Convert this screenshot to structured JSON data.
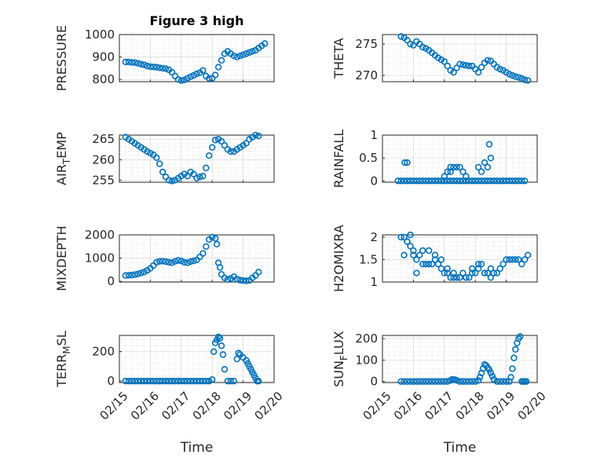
{
  "figure": {
    "marker_color": "#0072bd"
  },
  "chart_data": [
    {
      "type": "scatter",
      "title": "Figure 3 high",
      "ylabel": "PRESSURE",
      "ylim": [
        790,
        1000
      ],
      "yticks": [
        800,
        900,
        1000
      ],
      "show_x_ticklabels": false,
      "xlim": [
        "02/15",
        "02/20"
      ],
      "xticks": [
        "02/15",
        "02/16",
        "02/17",
        "02/18",
        "02/19",
        "02/20"
      ],
      "grid": true,
      "x": [
        0.2,
        0.3,
        0.4,
        0.5,
        0.6,
        0.7,
        0.8,
        0.9,
        1.0,
        1.1,
        1.2,
        1.3,
        1.4,
        1.5,
        1.6,
        1.7,
        1.8,
        1.9,
        2.0,
        2.1,
        2.2,
        2.3,
        2.4,
        2.5,
        2.6,
        2.7,
        2.8,
        2.9,
        3.0,
        3.1,
        3.2,
        3.3,
        3.4,
        3.5,
        3.6,
        3.7,
        3.8,
        3.9,
        4.0,
        4.1,
        4.2,
        4.3,
        4.4,
        4.5,
        4.6,
        4.7
      ],
      "y": [
        878,
        878,
        876,
        875,
        872,
        868,
        865,
        860,
        857,
        856,
        855,
        852,
        850,
        848,
        843,
        832,
        815,
        800,
        795,
        798,
        805,
        812,
        818,
        825,
        830,
        840,
        815,
        805,
        805,
        820,
        855,
        885,
        915,
        925,
        915,
        905,
        900,
        905,
        910,
        915,
        920,
        925,
        930,
        940,
        950,
        960
      ]
    },
    {
      "type": "scatter",
      "title": "",
      "ylabel": "THETA",
      "ylim": [
        269,
        276.5
      ],
      "yticks": [
        270,
        275
      ],
      "show_x_ticklabels": false,
      "xlim": [
        "02/15",
        "02/20"
      ],
      "xticks": [
        "02/15",
        "02/16",
        "02/17",
        "02/18",
        "02/19",
        "02/20"
      ],
      "grid": true,
      "x": [
        0.6,
        0.7,
        0.8,
        0.9,
        1.0,
        1.1,
        1.2,
        1.3,
        1.4,
        1.5,
        1.6,
        1.7,
        1.8,
        1.9,
        2.0,
        2.1,
        2.2,
        2.3,
        2.4,
        2.5,
        2.6,
        2.7,
        2.8,
        2.9,
        3.0,
        3.1,
        3.2,
        3.3,
        3.4,
        3.5,
        3.6,
        3.7,
        3.8,
        3.9,
        4.0,
        4.1,
        4.2,
        4.3,
        4.4,
        4.5,
        4.6,
        4.7
      ],
      "y": [
        276.2,
        276.0,
        275.6,
        275.0,
        274.8,
        275.4,
        275.0,
        274.5,
        274.3,
        274.0,
        273.6,
        273.2,
        272.8,
        272.5,
        272.2,
        271.5,
        270.8,
        270.5,
        271.2,
        271.8,
        271.7,
        271.6,
        271.5,
        271.5,
        271.0,
        270.5,
        271.3,
        272.0,
        272.4,
        272.3,
        271.8,
        271.3,
        271.0,
        270.8,
        270.5,
        270.2,
        270.0,
        269.8,
        269.7,
        269.5,
        269.3,
        269.2
      ]
    },
    {
      "type": "scatter",
      "title": "",
      "ylabel": "AIR_TEMP",
      "ylim": [
        254.5,
        266
      ],
      "yticks": [
        255,
        260,
        265
      ],
      "show_x_ticklabels": false,
      "xlim": [
        "02/15",
        "02/20"
      ],
      "xticks": [
        "02/15",
        "02/16",
        "02/17",
        "02/18",
        "02/19",
        "02/20"
      ],
      "grid": true,
      "x": [
        0.2,
        0.3,
        0.4,
        0.5,
        0.6,
        0.7,
        0.8,
        0.9,
        1.0,
        1.1,
        1.2,
        1.3,
        1.4,
        1.5,
        1.6,
        1.7,
        1.8,
        1.9,
        2.0,
        2.1,
        2.2,
        2.3,
        2.4,
        2.5,
        2.6,
        2.7,
        2.8,
        2.9,
        3.0,
        3.1,
        3.2,
        3.3,
        3.4,
        3.5,
        3.6,
        3.7,
        3.8,
        3.9,
        4.0,
        4.1,
        4.2,
        4.3,
        4.4,
        4.5
      ],
      "y": [
        265.5,
        265.0,
        264.5,
        264.0,
        263.5,
        263.0,
        262.5,
        262.0,
        261.6,
        261.2,
        260.5,
        259.0,
        257.0,
        255.8,
        255.0,
        254.8,
        255.0,
        255.5,
        256.0,
        256.5,
        256.0,
        257.0,
        256.5,
        255.5,
        255.8,
        256.0,
        258.0,
        261.0,
        263.0,
        264.8,
        265.0,
        264.5,
        263.5,
        262.5,
        262.0,
        262.0,
        262.5,
        263.0,
        263.5,
        264.0,
        265.0,
        265.5,
        266.0,
        265.8
      ]
    },
    {
      "type": "scatter",
      "title": "",
      "ylabel": "RAINFALL",
      "ylim": [
        -0.03,
        1
      ],
      "yticks": [
        0,
        0.5,
        1
      ],
      "show_x_ticklabels": false,
      "xlim": [
        "02/15",
        "02/20"
      ],
      "xticks": [
        "02/15",
        "02/16",
        "02/17",
        "02/18",
        "02/19",
        "02/20"
      ],
      "grid": true,
      "x": [
        0.5,
        0.6,
        0.7,
        0.8,
        0.9,
        1.0,
        1.1,
        1.2,
        1.3,
        1.4,
        1.5,
        1.6,
        1.7,
        1.8,
        1.9,
        2.0,
        2.1,
        2.2,
        2.3,
        2.4,
        2.5,
        2.6,
        2.7,
        2.8,
        2.9,
        3.0,
        3.1,
        3.2,
        3.3,
        3.4,
        3.5,
        3.6,
        3.7,
        3.8,
        3.9,
        4.0,
        4.1,
        4.2,
        4.3,
        4.4,
        4.5,
        4.6,
        0.72,
        0.8,
        2.0,
        2.1,
        2.2,
        2.3,
        2.4,
        2.5,
        2.6,
        2.7,
        3.1,
        3.2,
        3.3,
        3.4,
        3.5,
        2.2,
        3.45
      ],
      "y": [
        0,
        0,
        0,
        0,
        0,
        0,
        0,
        0,
        0,
        0,
        0,
        0,
        0,
        0,
        0,
        0,
        0,
        0,
        0,
        0,
        0,
        0,
        0,
        0,
        0,
        0,
        0,
        0,
        0,
        0,
        0,
        0,
        0,
        0,
        0,
        0,
        0,
        0,
        0,
        0,
        0,
        0,
        0.4,
        0.4,
        0.1,
        0.2,
        0.3,
        0.3,
        0.3,
        0.3,
        0.2,
        0.1,
        0.3,
        0.2,
        0.4,
        0.3,
        0.5,
        0.2,
        0.8
      ]
    },
    {
      "type": "scatter",
      "title": "",
      "ylabel": "MIXDEPTH",
      "ylim": [
        -30,
        2000
      ],
      "yticks": [
        0,
        1000,
        2000
      ],
      "show_x_ticklabels": false,
      "xlim": [
        "02/15",
        "02/20"
      ],
      "xticks": [
        "02/15",
        "02/16",
        "02/17",
        "02/18",
        "02/19",
        "02/20"
      ],
      "grid": true,
      "x": [
        0.2,
        0.3,
        0.4,
        0.5,
        0.6,
        0.7,
        0.8,
        0.9,
        1.0,
        1.1,
        1.2,
        1.3,
        1.4,
        1.5,
        1.6,
        1.7,
        1.8,
        1.9,
        2.0,
        2.1,
        2.2,
        2.3,
        2.4,
        2.5,
        2.6,
        2.7,
        2.8,
        2.9,
        3.0,
        3.1,
        3.15,
        3.2,
        3.25,
        3.3,
        3.4,
        3.5,
        3.6,
        3.7,
        3.8,
        3.9,
        4.0,
        4.1,
        4.2,
        4.3,
        4.4,
        4.5
      ],
      "y": [
        250,
        260,
        270,
        290,
        320,
        360,
        400,
        470,
        560,
        680,
        820,
        860,
        870,
        850,
        820,
        800,
        860,
        900,
        880,
        820,
        800,
        850,
        880,
        920,
        1050,
        1200,
        1500,
        1800,
        1900,
        1850,
        1600,
        800,
        600,
        300,
        150,
        80,
        120,
        200,
        100,
        50,
        30,
        20,
        40,
        150,
        250,
        400
      ]
    },
    {
      "type": "scatter",
      "title": "",
      "ylabel": "H2OMIXRA",
      "ylim": [
        1,
        2.05
      ],
      "yticks": [
        1,
        1.5,
        2
      ],
      "show_x_ticklabels": false,
      "xlim": [
        "02/15",
        "02/20"
      ],
      "xticks": [
        "02/15",
        "02/16",
        "02/17",
        "02/18",
        "02/19",
        "02/20"
      ],
      "grid": true,
      "x": [
        0.6,
        0.7,
        0.8,
        0.9,
        1.0,
        1.1,
        1.2,
        1.3,
        1.4,
        1.5,
        1.6,
        1.7,
        1.8,
        1.9,
        2.0,
        2.1,
        2.2,
        2.3,
        2.4,
        2.5,
        2.6,
        2.7,
        2.8,
        2.9,
        3.0,
        3.1,
        3.2,
        3.3,
        3.4,
        3.5,
        3.6,
        3.7,
        3.8,
        3.9,
        4.0,
        4.1,
        4.2,
        4.3,
        4.4,
        4.5,
        4.6,
        4.7,
        0.7,
        0.8,
        0.9,
        1.0,
        1.1,
        1.3,
        1.5,
        1.7,
        1.9,
        2.1,
        2.3,
        2.5,
        2.7,
        2.9,
        3.1,
        3.3,
        3.5
      ],
      "y": [
        2.0,
        2.0,
        1.9,
        1.8,
        1.6,
        1.5,
        1.6,
        1.4,
        1.4,
        1.4,
        1.4,
        1.5,
        1.4,
        1.3,
        1.2,
        1.2,
        1.1,
        1.1,
        1.1,
        1.1,
        1.2,
        1.1,
        1.1,
        1.2,
        1.2,
        1.3,
        1.4,
        1.2,
        1.2,
        1.1,
        1.2,
        1.2,
        1.3,
        1.4,
        1.5,
        1.5,
        1.5,
        1.5,
        1.5,
        1.4,
        1.5,
        1.6,
        1.6,
        1.9,
        2.05,
        1.7,
        1.2,
        1.7,
        1.7,
        1.6,
        1.5,
        1.3,
        1.2,
        1.1,
        1.1,
        1.3,
        1.4,
        1.2,
        1.3
      ]
    },
    {
      "type": "scatter",
      "title": "",
      "ylabel": "TERR_MSL",
      "ylim": [
        -10,
        310
      ],
      "yticks": [
        0,
        200
      ],
      "show_x_ticklabels": true,
      "xlim": [
        "02/15",
        "02/20"
      ],
      "xticks": [
        "02/15",
        "02/16",
        "02/17",
        "02/18",
        "02/19",
        "02/20"
      ],
      "xlabel": "Time",
      "grid": true,
      "x": [
        0.2,
        0.3,
        0.4,
        0.5,
        0.6,
        0.7,
        0.8,
        0.9,
        1.0,
        1.1,
        1.2,
        1.3,
        1.4,
        1.5,
        1.6,
        1.7,
        1.8,
        1.9,
        2.0,
        2.1,
        2.2,
        2.3,
        2.4,
        2.5,
        2.6,
        2.7,
        2.8,
        2.9,
        3.0,
        3.05,
        3.1,
        3.15,
        3.2,
        3.25,
        3.3,
        3.35,
        3.4,
        3.5,
        3.6,
        3.7,
        3.8,
        3.85,
        3.9,
        4.0,
        4.1,
        4.15,
        4.2,
        4.25,
        4.3,
        4.35,
        4.4,
        4.45,
        4.5
      ],
      "y": [
        0,
        0,
        0,
        0,
        0,
        0,
        0,
        0,
        0,
        0,
        0,
        0,
        0,
        0,
        0,
        0,
        0,
        0,
        0,
        0,
        0,
        0,
        0,
        0,
        0,
        0,
        0,
        0,
        10,
        200,
        260,
        280,
        300,
        290,
        240,
        180,
        80,
        0,
        0,
        0,
        150,
        190,
        180,
        160,
        140,
        120,
        100,
        80,
        60,
        40,
        20,
        0,
        0
      ]
    },
    {
      "type": "scatter",
      "title": "",
      "ylabel": "SUN_FLUX",
      "ylim": [
        -5,
        215
      ],
      "yticks": [
        0,
        100,
        200
      ],
      "show_x_ticklabels": true,
      "xlim": [
        "02/15",
        "02/20"
      ],
      "xticks": [
        "02/15",
        "02/16",
        "02/17",
        "02/18",
        "02/19",
        "02/20"
      ],
      "xlabel": "Time",
      "grid": true,
      "x": [
        0.6,
        0.7,
        0.8,
        0.9,
        1.0,
        1.1,
        1.2,
        1.3,
        1.4,
        1.5,
        1.6,
        1.7,
        1.8,
        1.9,
        2.0,
        2.1,
        2.2,
        2.25,
        2.3,
        2.35,
        2.4,
        2.5,
        2.6,
        2.7,
        2.8,
        2.9,
        3.0,
        3.1,
        3.15,
        3.2,
        3.25,
        3.3,
        3.35,
        3.4,
        3.45,
        3.5,
        3.55,
        3.6,
        3.7,
        3.8,
        3.9,
        4.0,
        4.1,
        4.15,
        4.2,
        4.25,
        4.3,
        4.35,
        4.4,
        4.45,
        4.5,
        4.55,
        4.6,
        4.65
      ],
      "y": [
        0,
        0,
        0,
        0,
        0,
        0,
        0,
        0,
        0,
        0,
        0,
        0,
        0,
        0,
        0,
        0,
        5,
        10,
        10,
        8,
        5,
        0,
        0,
        0,
        0,
        0,
        0,
        5,
        20,
        40,
        60,
        80,
        75,
        65,
        55,
        40,
        25,
        10,
        0,
        0,
        0,
        0,
        0,
        20,
        60,
        110,
        150,
        180,
        200,
        210,
        0,
        0,
        0,
        0
      ]
    }
  ]
}
